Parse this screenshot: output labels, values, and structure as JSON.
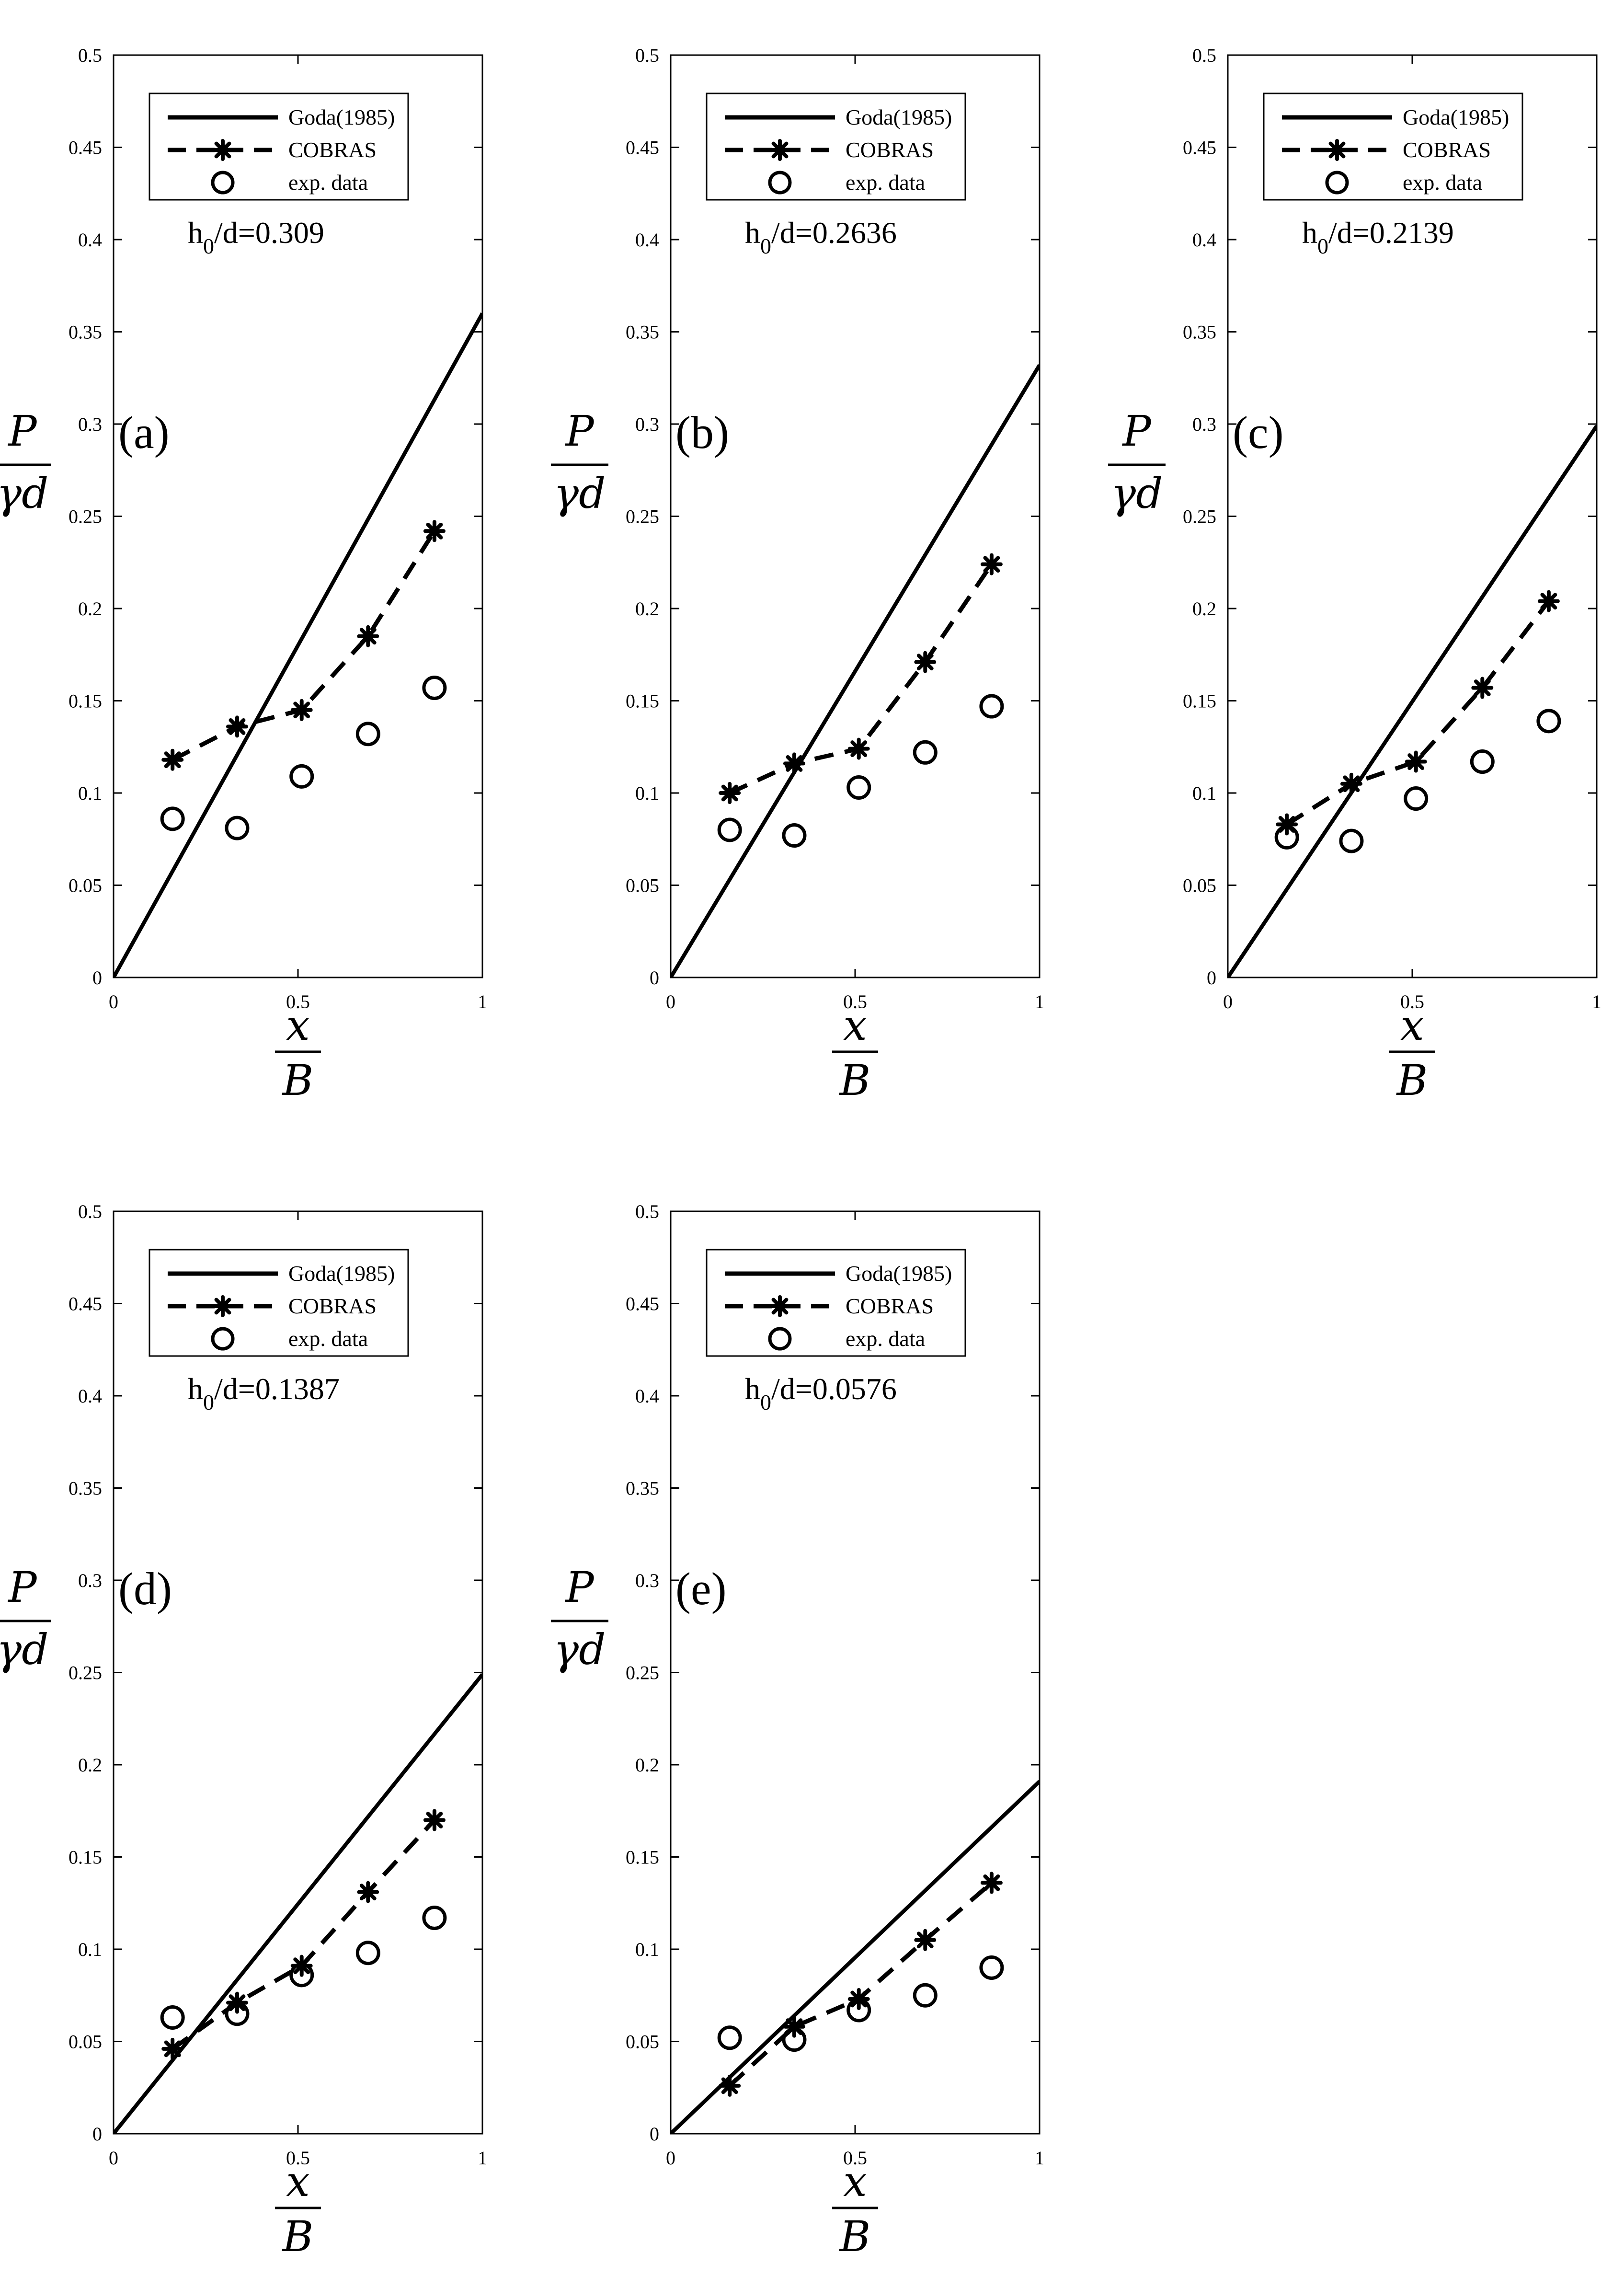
{
  "legend": {
    "goda": "Goda(1985)",
    "cobras": "COBRAS",
    "exp": "exp. data"
  },
  "axis_labels": {
    "y_numerator": "P",
    "y_denominator": "γd",
    "x_numerator": "x",
    "x_denominator": "B"
  },
  "colors": {
    "line": "#000000",
    "background": "#ffffff"
  },
  "chart_data": [
    {
      "type": "line",
      "panel_label": "(a)",
      "annotation": {
        "base": "h",
        "subscript": "0",
        "suffix": "/d=0.309"
      },
      "xlim": [
        0,
        1
      ],
      "ylim": [
        0,
        0.5
      ],
      "x_ticks": [
        "0",
        "0.5",
        "1"
      ],
      "y_ticks": [
        "0",
        "0.05",
        "0.1",
        "0.15",
        "0.2",
        "0.25",
        "0.3",
        "0.35",
        "0.4",
        "0.45",
        "0.5"
      ],
      "grid": false,
      "legend_position": "top-center",
      "series": [
        {
          "name": "Goda(1985)",
          "style": "solid",
          "x": [
            0,
            1
          ],
          "y": [
            0,
            0.36
          ]
        },
        {
          "name": "COBRAS",
          "style": "dashed-star",
          "x": [
            0.16,
            0.335,
            0.51,
            0.69,
            0.87
          ],
          "y": [
            0.118,
            0.136,
            0.145,
            0.185,
            0.242
          ]
        },
        {
          "name": "exp. data",
          "style": "circle",
          "x": [
            0.16,
            0.335,
            0.51,
            0.69,
            0.87
          ],
          "y": [
            0.086,
            0.081,
            0.109,
            0.132,
            0.157
          ]
        }
      ]
    },
    {
      "type": "line",
      "panel_label": "(b)",
      "annotation": {
        "base": "h",
        "subscript": "0",
        "suffix": "/d=0.2636"
      },
      "xlim": [
        0,
        1
      ],
      "ylim": [
        0,
        0.5
      ],
      "x_ticks": [
        "0",
        "0.5",
        "1"
      ],
      "y_ticks": [
        "0",
        "0.05",
        "0.1",
        "0.15",
        "0.2",
        "0.25",
        "0.3",
        "0.35",
        "0.4",
        "0.45",
        "0.5"
      ],
      "grid": false,
      "legend_position": "top-center",
      "series": [
        {
          "name": "Goda(1985)",
          "style": "solid",
          "x": [
            0,
            1
          ],
          "y": [
            0,
            0.332
          ]
        },
        {
          "name": "COBRAS",
          "style": "dashed-star",
          "x": [
            0.16,
            0.335,
            0.51,
            0.69,
            0.87
          ],
          "y": [
            0.1,
            0.116,
            0.124,
            0.171,
            0.224
          ]
        },
        {
          "name": "exp. data",
          "style": "circle",
          "x": [
            0.16,
            0.335,
            0.51,
            0.69,
            0.87
          ],
          "y": [
            0.08,
            0.077,
            0.103,
            0.122,
            0.147
          ]
        }
      ]
    },
    {
      "type": "line",
      "panel_label": "(c)",
      "annotation": {
        "base": "h",
        "subscript": "0",
        "suffix": "/d=0.2139"
      },
      "xlim": [
        0,
        1
      ],
      "ylim": [
        0,
        0.5
      ],
      "x_ticks": [
        "0",
        "0.5",
        "1"
      ],
      "y_ticks": [
        "0",
        "0.05",
        "0.1",
        "0.15",
        "0.2",
        "0.25",
        "0.3",
        "0.35",
        "0.4",
        "0.45",
        "0.5"
      ],
      "grid": false,
      "legend_position": "top-center",
      "series": [
        {
          "name": "Goda(1985)",
          "style": "solid",
          "x": [
            0,
            1
          ],
          "y": [
            0,
            0.299
          ]
        },
        {
          "name": "COBRAS",
          "style": "dashed-star",
          "x": [
            0.16,
            0.335,
            0.51,
            0.69,
            0.87
          ],
          "y": [
            0.083,
            0.105,
            0.117,
            0.157,
            0.204
          ]
        },
        {
          "name": "exp. data",
          "style": "circle",
          "x": [
            0.16,
            0.335,
            0.51,
            0.69,
            0.87
          ],
          "y": [
            0.076,
            0.074,
            0.097,
            0.117,
            0.139
          ]
        }
      ]
    },
    {
      "type": "line",
      "panel_label": "(d)",
      "annotation": {
        "base": "h",
        "subscript": "0",
        "suffix": "/d=0.1387"
      },
      "xlim": [
        0,
        1
      ],
      "ylim": [
        0,
        0.5
      ],
      "x_ticks": [
        "0",
        "0.5",
        "1"
      ],
      "y_ticks": [
        "0",
        "0.05",
        "0.1",
        "0.15",
        "0.2",
        "0.25",
        "0.3",
        "0.35",
        "0.4",
        "0.45",
        "0.5"
      ],
      "grid": false,
      "legend_position": "top-center",
      "series": [
        {
          "name": "Goda(1985)",
          "style": "solid",
          "x": [
            0,
            1
          ],
          "y": [
            0,
            0.249
          ]
        },
        {
          "name": "COBRAS",
          "style": "dashed-star",
          "x": [
            0.16,
            0.335,
            0.51,
            0.69,
            0.87
          ],
          "y": [
            0.046,
            0.071,
            0.091,
            0.131,
            0.17
          ]
        },
        {
          "name": "exp. data",
          "style": "circle",
          "x": [
            0.16,
            0.335,
            0.51,
            0.69,
            0.87
          ],
          "y": [
            0.063,
            0.065,
            0.086,
            0.098,
            0.117
          ]
        }
      ]
    },
    {
      "type": "line",
      "panel_label": "(e)",
      "annotation": {
        "base": "h",
        "subscript": "0",
        "suffix": "/d=0.0576"
      },
      "xlim": [
        0,
        1
      ],
      "ylim": [
        0,
        0.5
      ],
      "x_ticks": [
        "0",
        "0.5",
        "1"
      ],
      "y_ticks": [
        "0",
        "0.05",
        "0.1",
        "0.15",
        "0.2",
        "0.25",
        "0.3",
        "0.35",
        "0.4",
        "0.45",
        "0.5"
      ],
      "grid": false,
      "legend_position": "top-center",
      "series": [
        {
          "name": "Goda(1985)",
          "style": "solid",
          "x": [
            0,
            1
          ],
          "y": [
            0,
            0.191
          ]
        },
        {
          "name": "COBRAS",
          "style": "dashed-star",
          "x": [
            0.16,
            0.335,
            0.51,
            0.69,
            0.87
          ],
          "y": [
            0.026,
            0.058,
            0.073,
            0.105,
            0.136
          ]
        },
        {
          "name": "exp. data",
          "style": "circle",
          "x": [
            0.16,
            0.335,
            0.51,
            0.69,
            0.87
          ],
          "y": [
            0.052,
            0.051,
            0.067,
            0.075,
            0.09
          ]
        }
      ]
    }
  ]
}
